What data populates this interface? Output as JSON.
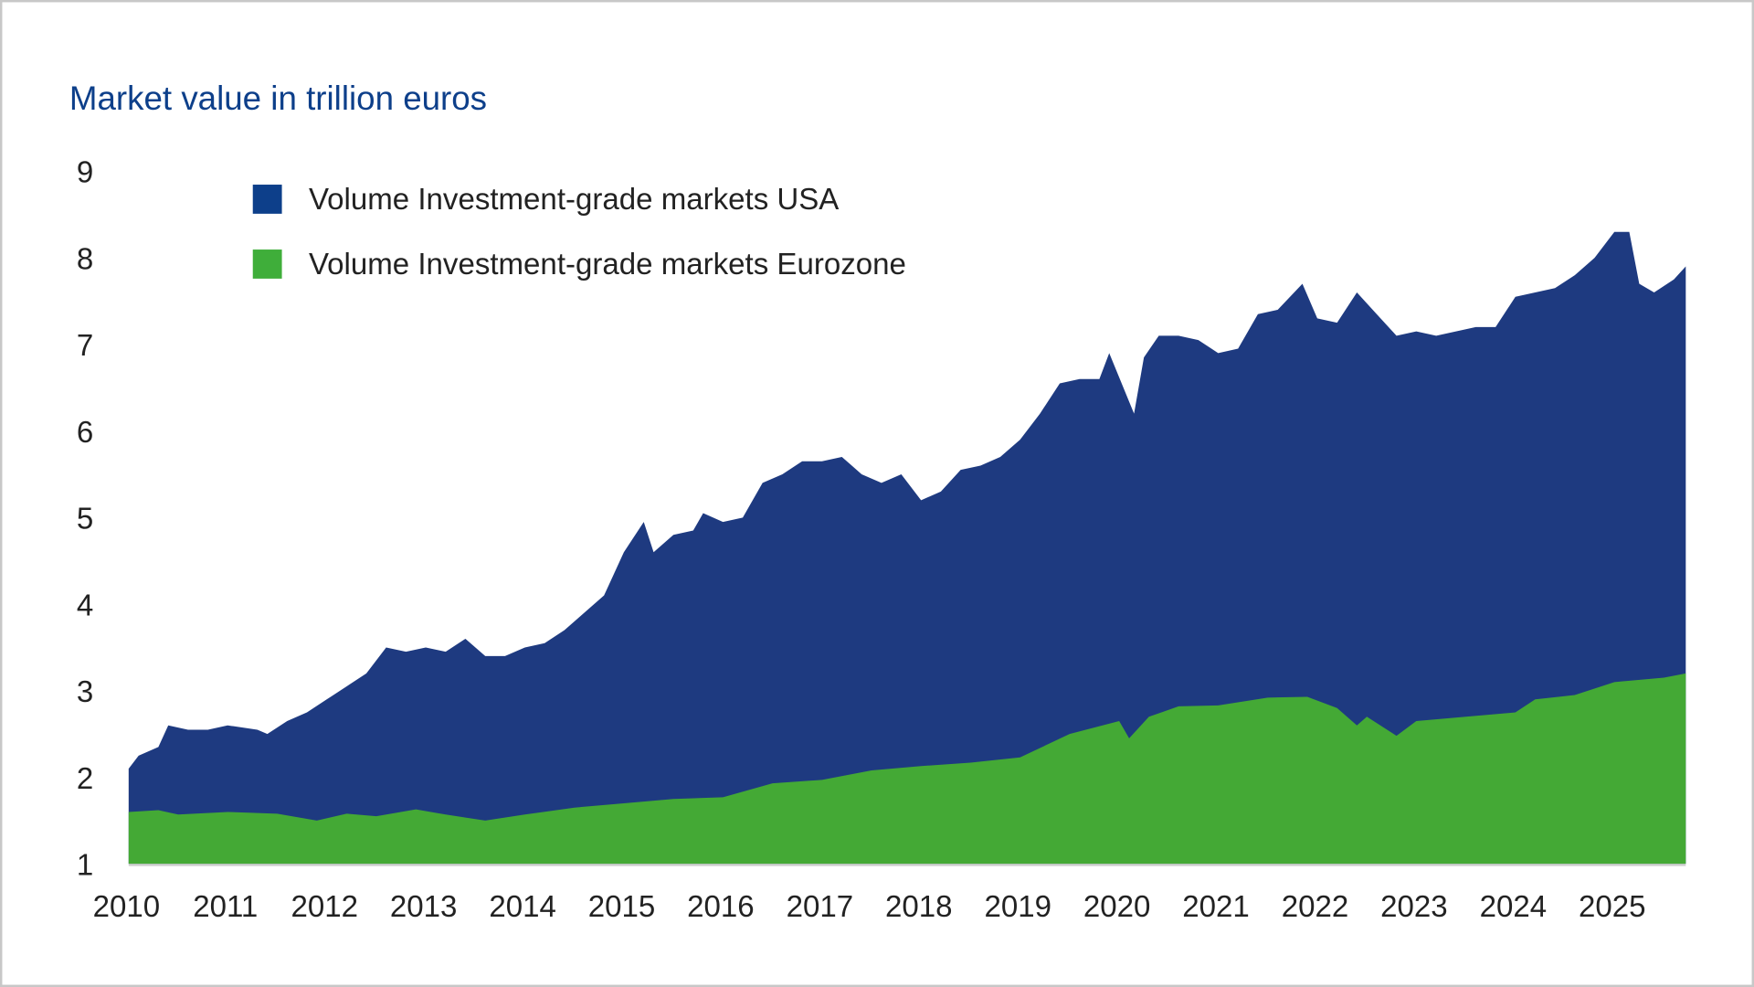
{
  "chart_data": {
    "type": "area",
    "title": "Market value in trillion euros",
    "xlabel": "",
    "ylabel": "Market value in trillion euros",
    "ylim": [
      1,
      9
    ],
    "xlim": [
      2010,
      2025.72
    ],
    "yticks": [
      "1",
      "2",
      "3",
      "4",
      "5",
      "6",
      "7",
      "8",
      "9"
    ],
    "xticks": [
      "2010",
      "2011",
      "2012",
      "2013",
      "2014",
      "2015",
      "2016",
      "2017",
      "2018",
      "2019",
      "2020",
      "2021",
      "2022",
      "2023",
      "2024",
      "2025"
    ],
    "grid": false,
    "legend_position": "top-left",
    "series": [
      {
        "name": "Volume Investment-grade markets USA",
        "color": "#1e3a80",
        "swatch": "#0d3f8a",
        "x": [
          2010.0,
          2010.1,
          2010.3,
          2010.4,
          2010.6,
          2010.8,
          2011.0,
          2011.3,
          2011.4,
          2011.6,
          2011.8,
          2012.0,
          2012.2,
          2012.4,
          2012.6,
          2012.8,
          2013.0,
          2013.2,
          2013.4,
          2013.6,
          2013.8,
          2014.0,
          2014.2,
          2014.4,
          2014.6,
          2014.8,
          2015.0,
          2015.2,
          2015.3,
          2015.5,
          2015.7,
          2015.8,
          2016.0,
          2016.2,
          2016.4,
          2016.6,
          2016.8,
          2017.0,
          2017.2,
          2017.4,
          2017.6,
          2017.8,
          2018.0,
          2018.2,
          2018.4,
          2018.6,
          2018.8,
          2019.0,
          2019.2,
          2019.4,
          2019.6,
          2019.8,
          2019.9,
          2020.15,
          2020.25,
          2020.4,
          2020.6,
          2020.8,
          2021.0,
          2021.2,
          2021.4,
          2021.6,
          2021.85,
          2022.0,
          2022.2,
          2022.4,
          2022.6,
          2022.8,
          2023.0,
          2023.2,
          2023.4,
          2023.6,
          2023.8,
          2024.0,
          2024.2,
          2024.4,
          2024.6,
          2024.8,
          2025.0,
          2025.15,
          2025.25,
          2025.4,
          2025.6,
          2025.72
        ],
        "values": [
          2.1,
          2.25,
          2.35,
          2.6,
          2.55,
          2.55,
          2.6,
          2.55,
          2.5,
          2.65,
          2.75,
          2.9,
          3.05,
          3.2,
          3.5,
          3.45,
          3.5,
          3.45,
          3.6,
          3.4,
          3.4,
          3.5,
          3.55,
          3.7,
          3.9,
          4.1,
          4.6,
          4.95,
          4.6,
          4.8,
          4.85,
          5.05,
          4.95,
          5.0,
          5.4,
          5.5,
          5.65,
          5.65,
          5.7,
          5.5,
          5.4,
          5.5,
          5.2,
          5.3,
          5.55,
          5.6,
          5.7,
          5.9,
          6.2,
          6.55,
          6.6,
          6.6,
          6.9,
          6.2,
          6.85,
          7.1,
          7.1,
          7.05,
          6.9,
          6.95,
          7.35,
          7.4,
          7.7,
          7.3,
          7.25,
          7.6,
          7.35,
          7.1,
          7.15,
          7.1,
          7.15,
          7.2,
          7.2,
          7.55,
          7.6,
          7.65,
          7.8,
          8.0,
          8.3,
          8.3,
          7.7,
          7.6,
          7.75,
          7.9
        ]
      },
      {
        "name": "Volume Investment-grade markets Eurozone",
        "color": "#44a935",
        "swatch": "#3fae3a",
        "x": [
          2010.0,
          2010.3,
          2010.5,
          2011.0,
          2011.5,
          2011.9,
          2012.2,
          2012.5,
          2012.9,
          2013.2,
          2013.6,
          2014.0,
          2014.5,
          2015.0,
          2015.5,
          2016.0,
          2016.5,
          2017.0,
          2017.5,
          2018.0,
          2018.5,
          2019.0,
          2019.5,
          2020.0,
          2020.1,
          2020.3,
          2020.6,
          2021.0,
          2021.5,
          2021.9,
          2022.2,
          2022.4,
          2022.5,
          2022.8,
          2023.0,
          2023.5,
          2024.0,
          2024.2,
          2024.6,
          2025.0,
          2025.5,
          2025.72
        ],
        "values": [
          1.6,
          1.62,
          1.57,
          1.6,
          1.58,
          1.5,
          1.58,
          1.55,
          1.63,
          1.57,
          1.5,
          1.57,
          1.65,
          1.7,
          1.75,
          1.77,
          1.93,
          1.97,
          2.08,
          2.13,
          2.17,
          2.23,
          2.5,
          2.65,
          2.45,
          2.7,
          2.82,
          2.83,
          2.92,
          2.93,
          2.8,
          2.6,
          2.7,
          2.48,
          2.65,
          2.7,
          2.75,
          2.9,
          2.95,
          3.1,
          3.15,
          3.2
        ]
      }
    ]
  }
}
